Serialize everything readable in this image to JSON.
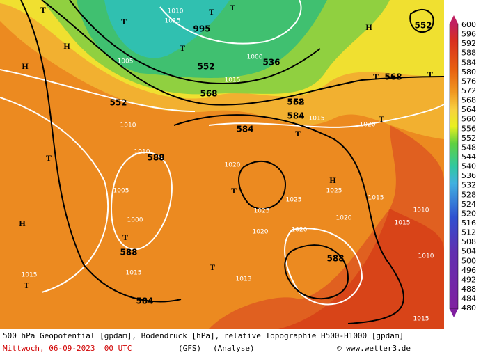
{
  "colorbar": {
    "labels": [
      600,
      596,
      592,
      588,
      584,
      580,
      576,
      572,
      568,
      564,
      560,
      556,
      552,
      548,
      544,
      540,
      536,
      532,
      528,
      524,
      520,
      516,
      512,
      508,
      504,
      500,
      496,
      492,
      488,
      484,
      480
    ]
  },
  "map_labels": [
    "552",
    "536",
    "552",
    "568",
    "552",
    "568",
    "584",
    "568",
    "588",
    "588",
    "584",
    "584",
    "588",
    "552",
    "568",
    "1010",
    "1015",
    "995",
    "1005",
    "1000",
    "1015",
    "1010",
    "1020",
    "1025",
    "1025",
    "1020",
    "1015",
    "1020",
    "1010",
    "1005",
    "1000",
    "1015",
    "1015",
    "1013",
    "1020",
    "1025",
    "1015",
    "1010",
    "1015",
    "1020",
    "1010",
    "1015",
    "H",
    "H",
    "H",
    "H",
    "H",
    "T",
    "T",
    "T",
    "T",
    "T",
    "T",
    "T",
    "T",
    "T",
    "T",
    "T",
    "T",
    "T",
    "T"
  ],
  "caption": {
    "description": "500 hPa Geopotential [gpdam], Bodendruck [hPa], relative Topographie H500-H1000 [gpdam]",
    "date": "Mittwoch, 06-09-2023  00 UTC",
    "model": "(GFS)",
    "analysis": "(Analyse)",
    "credit": "© www.wetter3.de"
  }
}
